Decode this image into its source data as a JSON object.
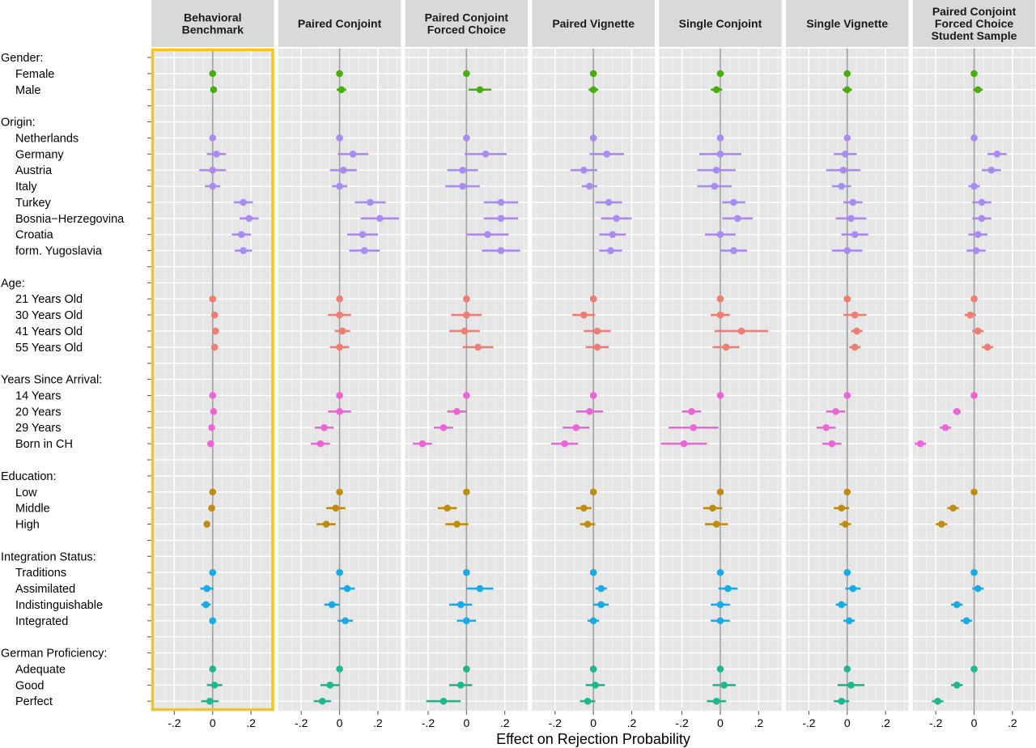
{
  "chart_data": {
    "type": "forest",
    "xlabel": "Effect on Rejection Probability",
    "xlim": [
      -0.32,
      0.32
    ],
    "x_ticks": [
      -0.2,
      0,
      0.2
    ],
    "x_tick_labels": [
      ".2",
      "0",
      ".2"
    ],
    "x_tick_prefix_neg": "-",
    "grid": true,
    "highlight_panel": 0,
    "highlight_color": "#F5C518",
    "groups": [
      {
        "title": "Gender:",
        "color": "#49AD0C",
        "items": [
          "Female",
          "Male"
        ]
      },
      {
        "title": "Origin:",
        "color": "#A98BF2",
        "items": [
          "Netherlands",
          "Germany",
          "Austria",
          "Italy",
          "Turkey",
          "Bosnia−Herzegovina",
          "Croatia",
          "form. Yugoslavia"
        ]
      },
      {
        "title": "Age:",
        "color": "#F07C72",
        "items": [
          "21 Years Old",
          "30 Years Old",
          "41 Years Old",
          "55 Years Old"
        ]
      },
      {
        "title": "Years Since Arrival:",
        "color": "#F062D7",
        "items": [
          "14 Years",
          "20 Years",
          "29 Years",
          "Born in CH"
        ]
      },
      {
        "title": "Education:",
        "color": "#BE8C11",
        "items": [
          "Low",
          "Middle",
          "High"
        ]
      },
      {
        "title": "Integration Status:",
        "color": "#17ACE8",
        "items": [
          "Traditions",
          "Assimilated",
          "Indistinguishable",
          "Integrated"
        ]
      },
      {
        "title": "German Proficiency:",
        "color": "#1DB98C",
        "items": [
          "Adequate",
          "Good",
          "Perfect"
        ]
      }
    ],
    "panels": [
      {
        "title": [
          "Behavioral",
          "Benchmark"
        ],
        "est": [
          [
            0,
            0.005
          ],
          [
            0,
            0.02,
            0,
            0,
            0.16,
            0.19,
            0.15,
            0.16
          ],
          [
            0,
            0.01,
            0.015,
            0.01
          ],
          [
            0,
            0.005,
            -0.005,
            -0.01
          ],
          [
            0,
            -0.005,
            -0.03
          ],
          [
            0,
            -0.03,
            -0.035,
            0
          ],
          [
            0,
            0.01,
            -0.015
          ]
        ],
        "ci": [
          [
            0,
            0.01
          ],
          [
            0,
            0.05,
            0.07,
            0.04,
            0.05,
            0.05,
            0.05,
            0.045
          ],
          [
            0,
            0.01,
            0.01,
            0.01
          ],
          [
            0,
            0.01,
            0.01,
            0.01
          ],
          [
            0,
            0.01,
            0.015
          ],
          [
            0,
            0.035,
            0.025,
            0.01
          ],
          [
            0,
            0.04,
            0.045
          ]
        ]
      },
      {
        "title": [
          "Paired Conjoint"
        ],
        "est": [
          [
            0,
            0.01
          ],
          [
            0,
            0.07,
            0.02,
            0,
            0.16,
            0.21,
            0.12,
            0.13
          ],
          [
            0,
            0,
            0.015,
            0
          ],
          [
            0,
            0,
            -0.08,
            -0.1
          ],
          [
            0,
            -0.02,
            -0.07
          ],
          [
            0,
            0.04,
            -0.04,
            0.03
          ],
          [
            0,
            -0.05,
            -0.09
          ]
        ],
        "ci": [
          [
            0,
            0.025
          ],
          [
            0,
            0.08,
            0.07,
            0.04,
            0.08,
            0.1,
            0.08,
            0.08
          ],
          [
            0,
            0.06,
            0.04,
            0.05
          ],
          [
            0,
            0.06,
            0.05,
            0.05
          ],
          [
            0,
            0.05,
            0.05
          ],
          [
            0,
            0.04,
            0.04,
            0.04
          ],
          [
            0,
            0.05,
            0.045
          ]
        ]
      },
      {
        "title": [
          "Paired Conjoint",
          "Forced Choice"
        ],
        "est": [
          [
            0,
            0.07
          ],
          [
            0,
            0.1,
            -0.02,
            -0.02,
            0.18,
            0.18,
            0.11,
            0.18
          ],
          [
            0,
            0,
            -0.01,
            0.06
          ],
          [
            0,
            -0.05,
            -0.12,
            -0.23
          ],
          [
            0,
            -0.1,
            -0.05
          ],
          [
            0,
            0.07,
            -0.03,
            0
          ],
          [
            0,
            -0.03,
            -0.12
          ]
        ],
        "ci": [
          [
            0,
            0.06
          ],
          [
            0,
            0.11,
            0.08,
            0.09,
            0.09,
            0.09,
            0.11,
            0.1
          ],
          [
            0,
            0.08,
            0.08,
            0.08
          ],
          [
            0,
            0.05,
            0.05,
            0.05
          ],
          [
            0,
            0.05,
            0.06
          ],
          [
            0,
            0.07,
            0.06,
            0.05
          ],
          [
            0,
            0.06,
            0.09
          ]
        ]
      },
      {
        "title": [
          "Paired Vignette"
        ],
        "est": [
          [
            0,
            0
          ],
          [
            0,
            0.07,
            -0.05,
            -0.02,
            0.08,
            0.12,
            0.1,
            0.09
          ],
          [
            0,
            -0.05,
            0.02,
            0.02
          ],
          [
            0,
            -0.02,
            -0.09,
            -0.15
          ],
          [
            0,
            -0.05,
            -0.03
          ],
          [
            0,
            0.04,
            0.04,
            0
          ],
          [
            0,
            0.01,
            -0.03
          ]
        ],
        "ci": [
          [
            0,
            0.025
          ],
          [
            0,
            0.09,
            0.07,
            0.04,
            0.07,
            0.08,
            0.07,
            0.06
          ],
          [
            0,
            0.06,
            0.07,
            0.06
          ],
          [
            0,
            0.07,
            0.07,
            0.07
          ],
          [
            0,
            0.04,
            0.04
          ],
          [
            0,
            0.03,
            0.04,
            0.03
          ],
          [
            0,
            0.05,
            0.04
          ]
        ]
      },
      {
        "title": [
          "Single Conjoint"
        ],
        "est": [
          [
            0,
            -0.02
          ],
          [
            0,
            0,
            -0.02,
            -0.03,
            0.07,
            0.09,
            0,
            0.07
          ],
          [
            0,
            0,
            0.11,
            0.03
          ],
          [
            0,
            -0.15,
            -0.14,
            -0.19
          ],
          [
            0,
            -0.04,
            -0.02
          ],
          [
            0,
            0.04,
            0,
            0
          ],
          [
            0,
            0.02,
            -0.02
          ]
        ],
        "ci": [
          [
            0,
            0.03
          ],
          [
            0,
            0.11,
            0.1,
            0.09,
            0.06,
            0.08,
            0.08,
            0.07
          ],
          [
            0,
            0.05,
            0.14,
            0.07
          ],
          [
            0,
            0.05,
            0.13,
            0.12
          ],
          [
            0,
            0.05,
            0.06
          ],
          [
            0,
            0.05,
            0.05,
            0.05
          ],
          [
            0,
            0.06,
            0.05
          ]
        ]
      },
      {
        "title": [
          "Single Vignette"
        ],
        "est": [
          [
            0,
            0
          ],
          [
            0,
            -0.01,
            -0.02,
            -0.03,
            0.03,
            0.02,
            0.04,
            0
          ],
          [
            0,
            0.04,
            0.05,
            0.04
          ],
          [
            0,
            -0.06,
            -0.11,
            -0.08
          ],
          [
            0,
            -0.03,
            -0.01
          ],
          [
            0,
            0.03,
            -0.03,
            0.01
          ],
          [
            0,
            0.02,
            -0.03
          ]
        ],
        "ci": [
          [
            0,
            0.025
          ],
          [
            0,
            0.06,
            0.09,
            0.05,
            0.05,
            0.08,
            0.07,
            0.08
          ],
          [
            0,
            0.06,
            0.03,
            0.03
          ],
          [
            0,
            0.05,
            0.05,
            0.05
          ],
          [
            0,
            0.04,
            0.03
          ],
          [
            0,
            0.04,
            0.03,
            0.03
          ],
          [
            0,
            0.07,
            0.04
          ]
        ]
      },
      {
        "title": [
          "Paired Conjoint",
          "Forced Choice",
          "Student Sample"
        ],
        "est": [
          [
            0,
            0.02
          ],
          [
            0,
            0.12,
            0.09,
            0,
            0.04,
            0.04,
            0.02,
            0.01
          ],
          [
            0,
            -0.02,
            0.02,
            0.07
          ],
          [
            0,
            -0.09,
            -0.15,
            -0.28
          ],
          [
            0,
            -0.11,
            -0.17
          ],
          [
            0,
            0.02,
            -0.09,
            -0.04
          ],
          [
            0,
            -0.09,
            -0.19
          ]
        ],
        "ci": [
          [
            0,
            0.025
          ],
          [
            0,
            0.05,
            0.05,
            0.03,
            0.05,
            0.05,
            0.05,
            0.05
          ],
          [
            0,
            0.03,
            0.03,
            0.03
          ],
          [
            0,
            0.02,
            0.03,
            0.03
          ],
          [
            0,
            0.03,
            0.03
          ],
          [
            0,
            0.03,
            0.03,
            0.03
          ],
          [
            0,
            0.03,
            0.03
          ]
        ]
      }
    ]
  }
}
